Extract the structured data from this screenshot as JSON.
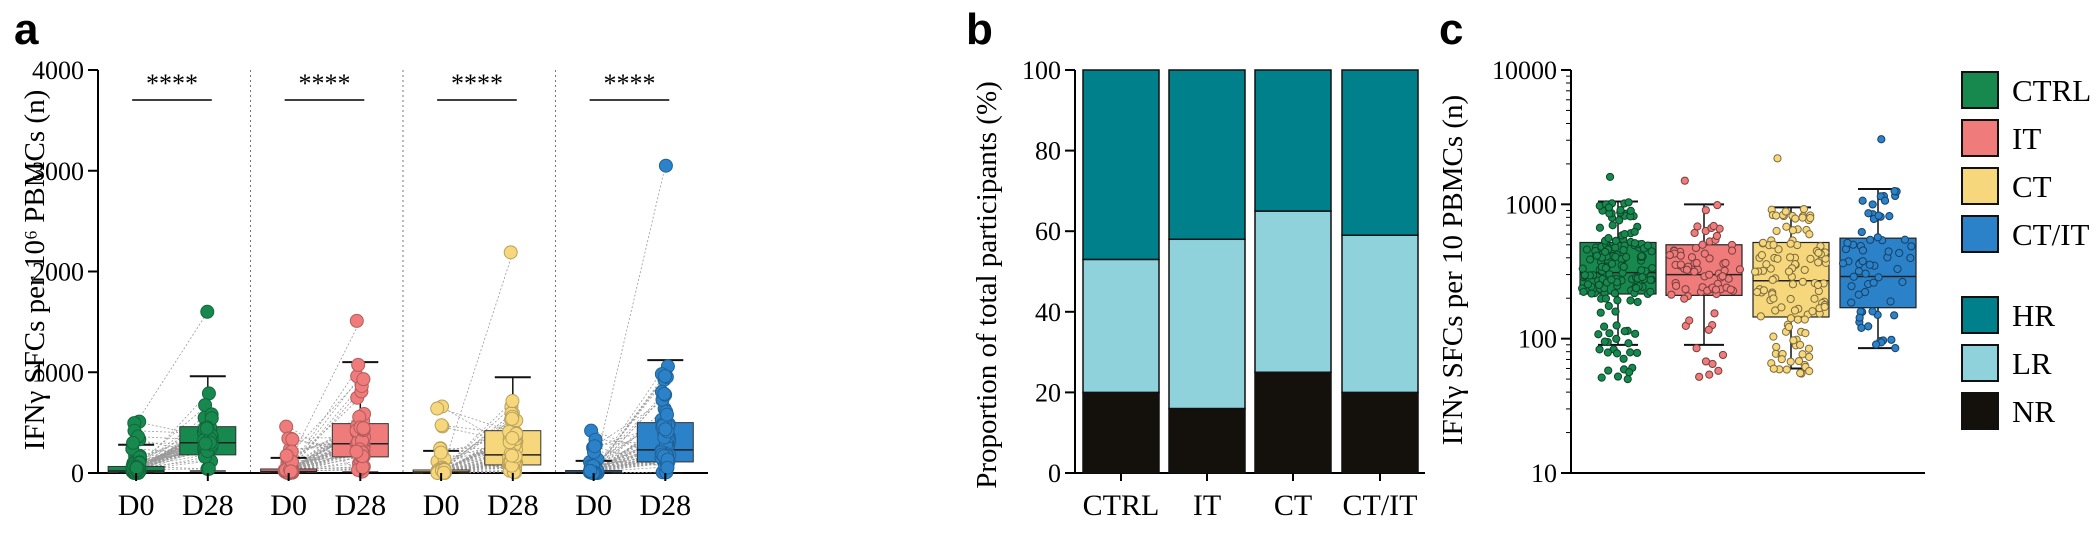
{
  "colors": {
    "CTRL": "#17894f",
    "IT": "#ef7b7b",
    "CT": "#f7d77c",
    "CT_IT": "#2b82c9",
    "HR": "#00808a",
    "LR": "#90d2dc",
    "NR": "#14110d"
  },
  "chart_data": [
    {
      "panel": "a",
      "type": "box",
      "ylabel": "IFNγ SFCs per 10⁶ PBMCs (n)",
      "ylim": [
        0,
        4000
      ],
      "yticks": [
        "0",
        "1000",
        "2000",
        "3000",
        "4000"
      ],
      "groups": [
        {
          "name": "CTRL",
          "color_key": "CTRL",
          "significance": "****",
          "D0": {
            "label": "D0",
            "q1": 5,
            "median": 20,
            "q3": 65,
            "whisker_low": 0,
            "whisker_high": 280,
            "max": 510
          },
          "D28": {
            "label": "D28",
            "q1": 180,
            "median": 300,
            "q3": 460,
            "whisker_low": 20,
            "whisker_high": 960,
            "max": 1600
          }
        },
        {
          "name": "IT",
          "color_key": "IT",
          "significance": "****",
          "D0": {
            "label": "D0",
            "q1": 5,
            "median": 15,
            "q3": 40,
            "whisker_low": 0,
            "whisker_high": 150,
            "max": 460
          },
          "D28": {
            "label": "D28",
            "q1": 160,
            "median": 290,
            "q3": 490,
            "whisker_low": 10,
            "whisker_high": 1100,
            "max": 1510
          }
        },
        {
          "name": "CT",
          "color_key": "CT",
          "significance": "****",
          "D0": {
            "label": "D0",
            "q1": 0,
            "median": 10,
            "q3": 30,
            "whisker_low": 0,
            "whisker_high": 220,
            "max": 660
          },
          "D28": {
            "label": "D28",
            "q1": 80,
            "median": 180,
            "q3": 420,
            "whisker_low": 0,
            "whisker_high": 950,
            "max": 2190
          }
        },
        {
          "name": "CT/IT",
          "color_key": "CT_IT",
          "significance": "****",
          "D0": {
            "label": "D0",
            "q1": 0,
            "median": 8,
            "q3": 25,
            "whisker_low": 0,
            "whisker_high": 120,
            "max": 420
          },
          "D28": {
            "label": "D28",
            "q1": 110,
            "median": 230,
            "q3": 500,
            "whisker_low": 0,
            "whisker_high": 1120,
            "max": 3050
          }
        }
      ]
    },
    {
      "panel": "b",
      "type": "bar",
      "stacked": true,
      "ylabel": "Proportion of total participants (%)",
      "ylim": [
        0,
        100
      ],
      "yticks": [
        "0",
        "20",
        "40",
        "60",
        "80",
        "100"
      ],
      "categories": [
        "CTRL",
        "IT",
        "CT",
        "CT/IT"
      ],
      "series": [
        {
          "name": "NR",
          "color_key": "NR",
          "values": [
            20,
            16,
            25,
            20
          ]
        },
        {
          "name": "LR",
          "color_key": "LR",
          "values": [
            33,
            42,
            40,
            39
          ]
        },
        {
          "name": "HR",
          "color_key": "HR",
          "values": [
            47,
            42,
            35,
            41
          ]
        }
      ]
    },
    {
      "panel": "c",
      "type": "box",
      "yscale": "log",
      "ylabel": "IFNγ SFCs per 10 PBMCs (n)",
      "ylim": [
        10,
        10000
      ],
      "yticks": [
        "10",
        "100",
        "1000",
        "10000"
      ],
      "groups": [
        {
          "name": "CTRL",
          "color_key": "CTRL",
          "q1": 215,
          "median": 310,
          "q3": 520,
          "whisker_low": 90,
          "whisker_high": 1050,
          "min": 50,
          "max": 1600,
          "n": 160
        },
        {
          "name": "IT",
          "color_key": "IT",
          "q1": 210,
          "median": 300,
          "q3": 500,
          "whisker_low": 90,
          "whisker_high": 1000,
          "min": 52,
          "max": 1500,
          "n": 75
        },
        {
          "name": "CT",
          "color_key": "CT",
          "q1": 145,
          "median": 270,
          "q3": 520,
          "whisker_low": 60,
          "whisker_high": 950,
          "min": 55,
          "max": 2200,
          "n": 120
        },
        {
          "name": "CT/IT",
          "color_key": "CT_IT",
          "q1": 170,
          "median": 290,
          "q3": 560,
          "whisker_low": 85,
          "whisker_high": 1300,
          "min": 85,
          "max": 3050,
          "n": 65
        }
      ]
    }
  ],
  "panel_labels": {
    "a": "a",
    "b": "b",
    "c": "c"
  },
  "legend": [
    {
      "label": "CTRL",
      "color_key": "CTRL"
    },
    {
      "label": "IT",
      "color_key": "IT"
    },
    {
      "label": "CT",
      "color_key": "CT"
    },
    {
      "label": "CT/IT",
      "color_key": "CT_IT"
    },
    {
      "label": "HR",
      "color_key": "HR"
    },
    {
      "label": "LR",
      "color_key": "LR"
    },
    {
      "label": "NR",
      "color_key": "NR"
    }
  ]
}
